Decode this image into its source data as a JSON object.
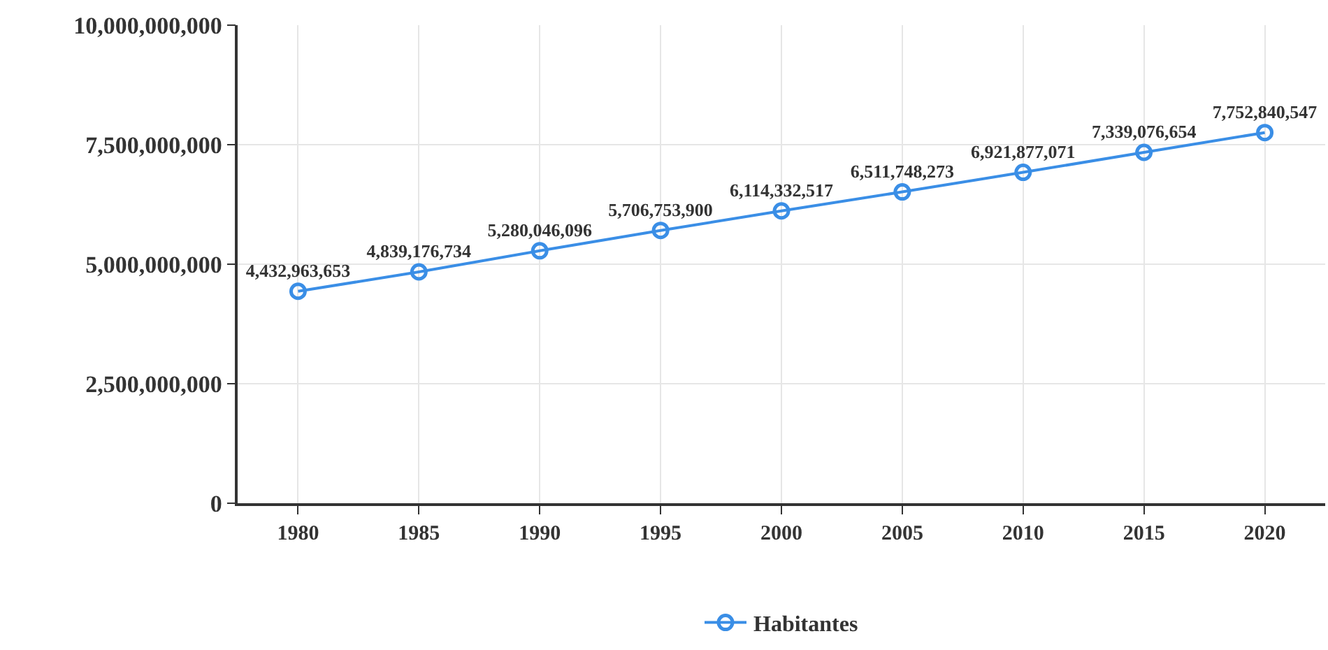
{
  "chart_data": {
    "type": "line",
    "categories": [
      "1980",
      "1985",
      "1990",
      "1995",
      "2000",
      "2005",
      "2010",
      "2015",
      "2020"
    ],
    "series": [
      {
        "name": "Habitantes",
        "color": "#3a8ee6",
        "values": [
          4432963653,
          4839176734,
          5280046096,
          5706753900,
          6114332517,
          6511748273,
          6921877071,
          7339076654,
          7752840547
        ],
        "value_labels": [
          "4,432,963,653",
          "4,839,176,734",
          "5,280,046,096",
          "5,706,753,900",
          "6,114,332,517",
          "6,511,748,273",
          "6,921,877,071",
          "7,339,076,654",
          "7,752,840,547"
        ]
      }
    ],
    "ylim": [
      0,
      10000000000
    ],
    "yticks": [
      {
        "value": 0,
        "label": "0"
      },
      {
        "value": 2500000000,
        "label": "2,500,000,000"
      },
      {
        "value": 5000000000,
        "label": "5,000,000,000"
      },
      {
        "value": 7500000000,
        "label": "7,500,000,000"
      },
      {
        "value": 10000000000,
        "label": "10,000,000,000"
      }
    ],
    "grid": true,
    "legend": "bottom",
    "marker": "circle",
    "line_style": "solid"
  }
}
